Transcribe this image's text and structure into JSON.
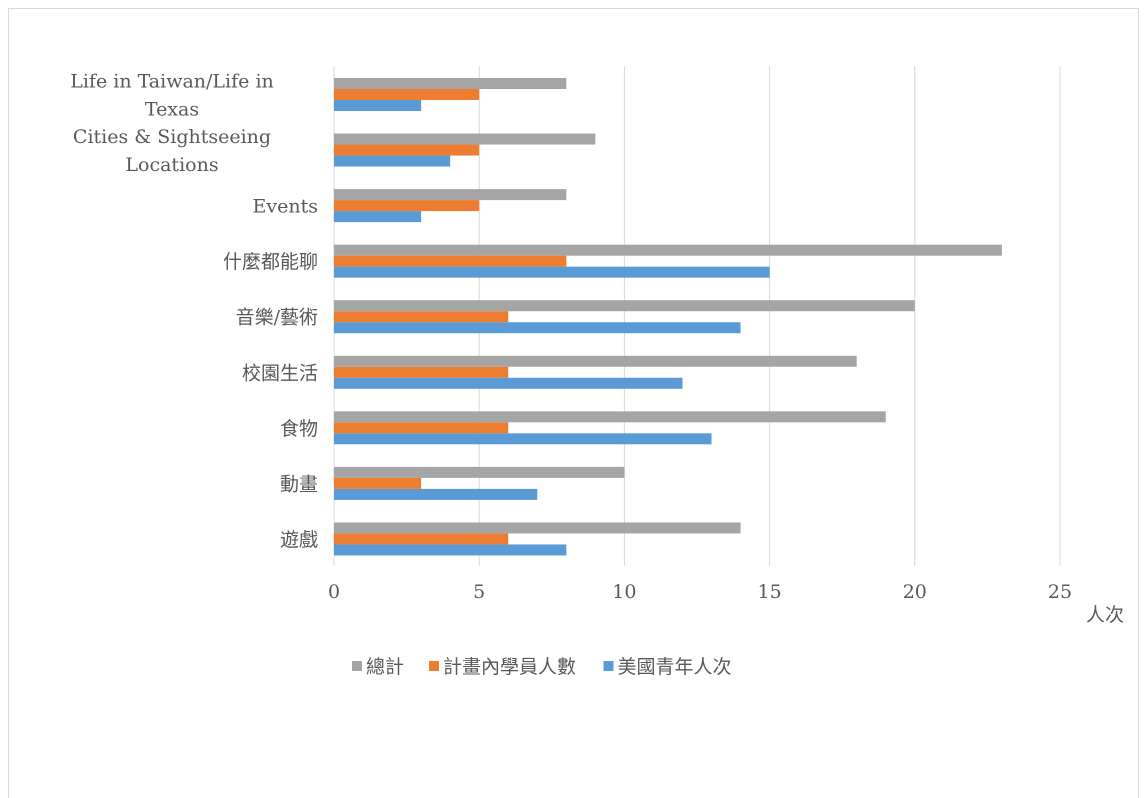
{
  "chart_data": {
    "type": "bar",
    "orientation": "horizontal",
    "title": "",
    "unit_label": "人次",
    "categories": [
      "Life in Taiwan/Life in Texas",
      "Cities & Sightseeing Locations",
      "Events",
      "什麼都能聊",
      "音樂/藝術",
      "校園生活",
      "食物",
      "動畫",
      "遊戲"
    ],
    "category_display_lines": [
      [
        "Life in Taiwan/Life in",
        "Texas"
      ],
      [
        "Cities & Sightseeing",
        "Locations"
      ],
      [
        "Events"
      ],
      [
        "什麼都能聊"
      ],
      [
        "音樂/藝術"
      ],
      [
        "校園生活"
      ],
      [
        "食物"
      ],
      [
        "動畫"
      ],
      [
        "遊戲"
      ]
    ],
    "series": [
      {
        "name": "總計",
        "color": "#a5a5a5",
        "values": [
          8,
          9,
          8,
          23,
          20,
          18,
          19,
          10,
          14
        ]
      },
      {
        "name": "計畫內學員人數",
        "color": "#ed7d31",
        "values": [
          5,
          5,
          5,
          8,
          6,
          6,
          6,
          3,
          6
        ]
      },
      {
        "name": "美國青年人次",
        "color": "#5b9bd5",
        "values": [
          3,
          4,
          3,
          15,
          14,
          12,
          13,
          7,
          8
        ]
      }
    ],
    "xlim": [
      0,
      25
    ],
    "xticks": [
      0,
      5,
      10,
      15,
      20,
      25
    ],
    "grid": true,
    "legend_position": "bottom"
  }
}
